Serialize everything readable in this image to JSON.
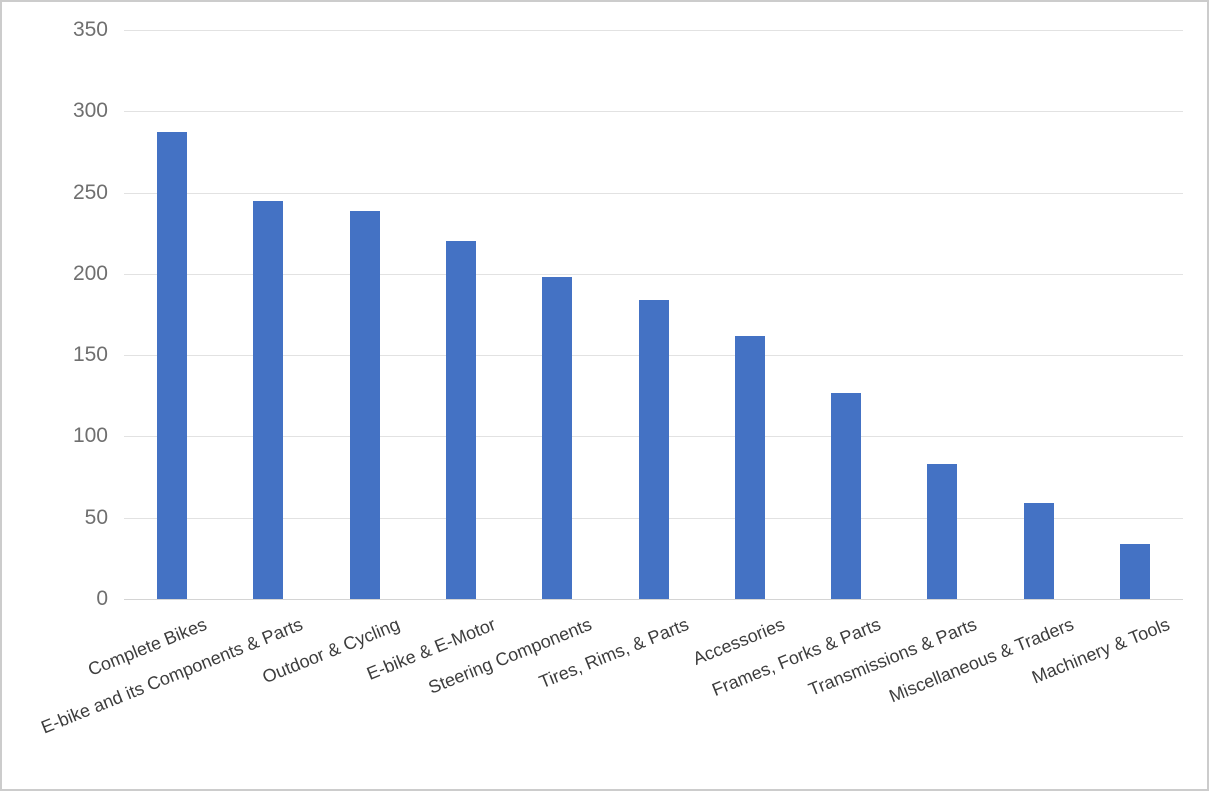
{
  "chart_data": {
    "type": "bar",
    "title": "",
    "xlabel": "",
    "ylabel": "",
    "categories": [
      "Complete Bikes",
      "E-bike and its Components & Parts",
      "Outdoor & Cycling",
      "E-bike & E-Motor",
      "Steering Components",
      "Tires, Rims, & Parts",
      "Accessories",
      "Frames, Forks & Parts",
      "Transmissions & Parts",
      "Miscellaneous & Traders",
      "Machinery & Tools"
    ],
    "values": [
      287,
      245,
      239,
      220,
      198,
      184,
      162,
      127,
      83,
      59,
      34
    ],
    "ylim": [
      0,
      350
    ],
    "yticks": [
      0,
      50,
      100,
      150,
      200,
      250,
      300,
      350
    ],
    "grid": true,
    "legend": false,
    "colors": {
      "bar": "#4472C4",
      "gridline": "#e2e2e2",
      "axis_baseline": "#d4d4d4",
      "tick_label": "#6f6f6f",
      "category_label": "#3d3d3d",
      "background": "#ffffff",
      "border": "#cccccc"
    }
  }
}
